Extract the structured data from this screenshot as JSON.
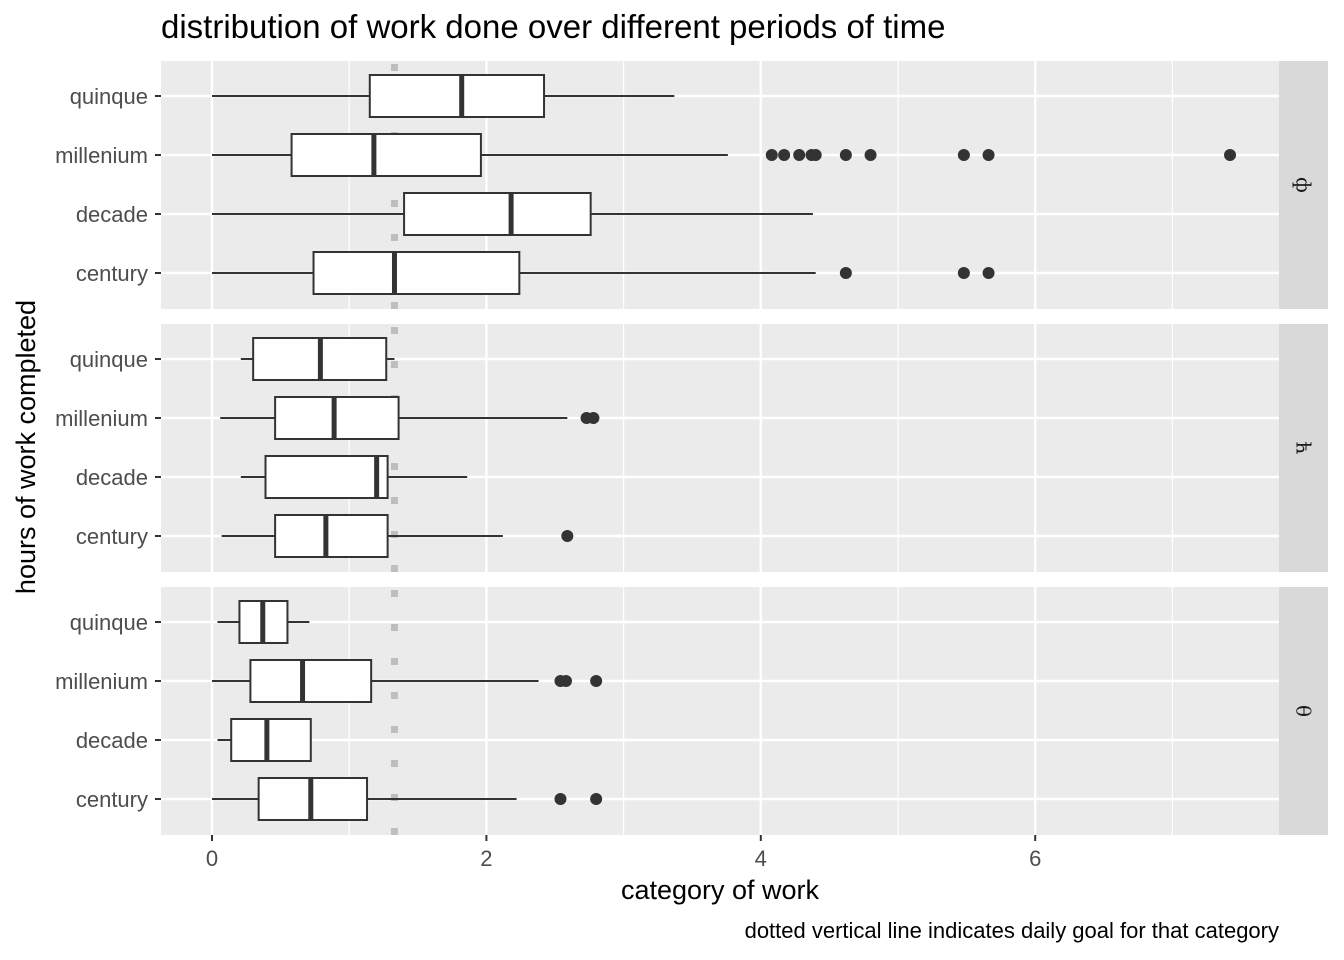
{
  "chart_data": {
    "type": "boxplot",
    "orientation": "horizontal",
    "title": "distribution of work done over different periods of time",
    "xlabel": "category of work",
    "ylabel": "hours of work completed",
    "caption": "dotted vertical line indicates daily goal for that category",
    "xlim": [
      -0.37,
      7.8
    ],
    "x_ticks": [
      0,
      2,
      4,
      6
    ],
    "goal_line_x": 1.33,
    "categories": [
      "quinque",
      "millenium",
      "decade",
      "century"
    ],
    "grid": true,
    "facets": [
      {
        "label": "ф",
        "boxes": [
          {
            "category": "quinque",
            "min": 0,
            "q1": 1.15,
            "median": 1.82,
            "q3": 2.42,
            "max": 3.37,
            "outliers": []
          },
          {
            "category": "millenium",
            "min": 0,
            "q1": 0.58,
            "median": 1.18,
            "q3": 1.96,
            "max": 3.76,
            "outliers": [
              4.08,
              4.17,
              4.28,
              4.37,
              4.4,
              4.62,
              4.8,
              5.48,
              5.66,
              7.42
            ]
          },
          {
            "category": "decade",
            "min": 0,
            "q1": 1.4,
            "median": 2.18,
            "q3": 2.76,
            "max": 4.38,
            "outliers": []
          },
          {
            "category": "century",
            "min": 0,
            "q1": 0.74,
            "median": 1.33,
            "q3": 2.24,
            "max": 4.4,
            "outliers": [
              4.62,
              5.48,
              5.66
            ]
          }
        ]
      },
      {
        "label": "ћ",
        "boxes": [
          {
            "category": "quinque",
            "min": 0.21,
            "q1": 0.3,
            "median": 0.79,
            "q3": 1.27,
            "max": 1.33,
            "outliers": []
          },
          {
            "category": "millenium",
            "min": 0.06,
            "q1": 0.46,
            "median": 0.89,
            "q3": 1.36,
            "max": 2.59,
            "outliers": [
              2.73,
              2.78
            ]
          },
          {
            "category": "decade",
            "min": 0.21,
            "q1": 0.39,
            "median": 1.2,
            "q3": 1.28,
            "max": 1.86,
            "outliers": []
          },
          {
            "category": "century",
            "min": 0.07,
            "q1": 0.46,
            "median": 0.83,
            "q3": 1.28,
            "max": 2.12,
            "outliers": [
              2.59
            ]
          }
        ]
      },
      {
        "label": "θ",
        "boxes": [
          {
            "category": "quinque",
            "min": 0.04,
            "q1": 0.2,
            "median": 0.37,
            "q3": 0.55,
            "max": 0.71,
            "outliers": []
          },
          {
            "category": "millenium",
            "min": 0,
            "q1": 0.28,
            "median": 0.66,
            "q3": 1.16,
            "max": 2.38,
            "outliers": [
              2.54,
              2.58,
              2.8
            ]
          },
          {
            "category": "decade",
            "min": 0.04,
            "q1": 0.14,
            "median": 0.4,
            "q3": 0.72,
            "max": 0.72,
            "outliers": []
          },
          {
            "category": "century",
            "min": 0,
            "q1": 0.34,
            "median": 0.72,
            "q3": 1.13,
            "max": 2.22,
            "outliers": [
              2.54,
              2.8
            ]
          }
        ]
      }
    ],
    "colors": {
      "panel_bg": "#ebebeb",
      "strip_bg": "#d9d9d9",
      "grid": "#ffffff",
      "box_fill": "#ffffff",
      "box_line": "#333333",
      "goal_line": "#bebebe",
      "tick_text": "#4d4d4d"
    }
  }
}
